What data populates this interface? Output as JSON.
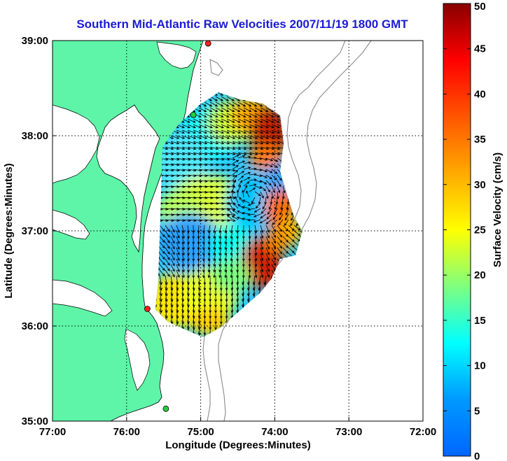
{
  "map": {
    "title": "Southern Mid-Atlantic Raw Velocities 2007/11/19 1800 GMT",
    "x_axis_label": "Longitude (Degrees:Minutes)",
    "y_axis_label": "Latitude (Degrees:Minutes)",
    "lon_range": [
      -77.0,
      -72.0
    ],
    "lat_range": [
      35.0,
      39.0
    ],
    "lon_ticks": [
      {
        "value": -77.0,
        "label": "77:00"
      },
      {
        "value": -76.0,
        "label": "76:00"
      },
      {
        "value": -75.0,
        "label": "75:00"
      },
      {
        "value": -74.0,
        "label": "74:00"
      },
      {
        "value": -73.0,
        "label": "73:00"
      },
      {
        "value": -72.0,
        "label": "72:00"
      }
    ],
    "lat_ticks": [
      {
        "value": 39.0,
        "label": "39:00"
      },
      {
        "value": 38.0,
        "label": "38:00"
      },
      {
        "value": 37.0,
        "label": "37:00"
      },
      {
        "value": 36.0,
        "label": "36:00"
      },
      {
        "value": 35.0,
        "label": "35:00"
      }
    ],
    "grid": "dotted",
    "land_color": "#5ef5a8",
    "bathymetry_color": "#8a8a8a",
    "stations": [
      {
        "lon": -74.9,
        "lat": 38.97,
        "color": "#ff2020"
      },
      {
        "lon": -75.1,
        "lat": 38.22,
        "color": "#20d040"
      },
      {
        "lon": -75.72,
        "lat": 36.18,
        "color": "#ff2020"
      },
      {
        "lon": -75.47,
        "lat": 35.13,
        "color": "#20d040"
      }
    ]
  },
  "colorbar": {
    "label": "Surface Velocity (cm/s)",
    "min": 0,
    "max": 50,
    "ticks": [
      {
        "value": 0,
        "label": "0"
      },
      {
        "value": 5,
        "label": "5"
      },
      {
        "value": 10,
        "label": "10"
      },
      {
        "value": 15,
        "label": "15"
      },
      {
        "value": 20,
        "label": "20"
      },
      {
        "value": 25,
        "label": "25"
      },
      {
        "value": 30,
        "label": "30"
      },
      {
        "value": 35,
        "label": "35"
      },
      {
        "value": 40,
        "label": "40"
      },
      {
        "value": 45,
        "label": "45"
      },
      {
        "value": 50,
        "label": "50"
      }
    ],
    "colormap": "jet"
  }
}
